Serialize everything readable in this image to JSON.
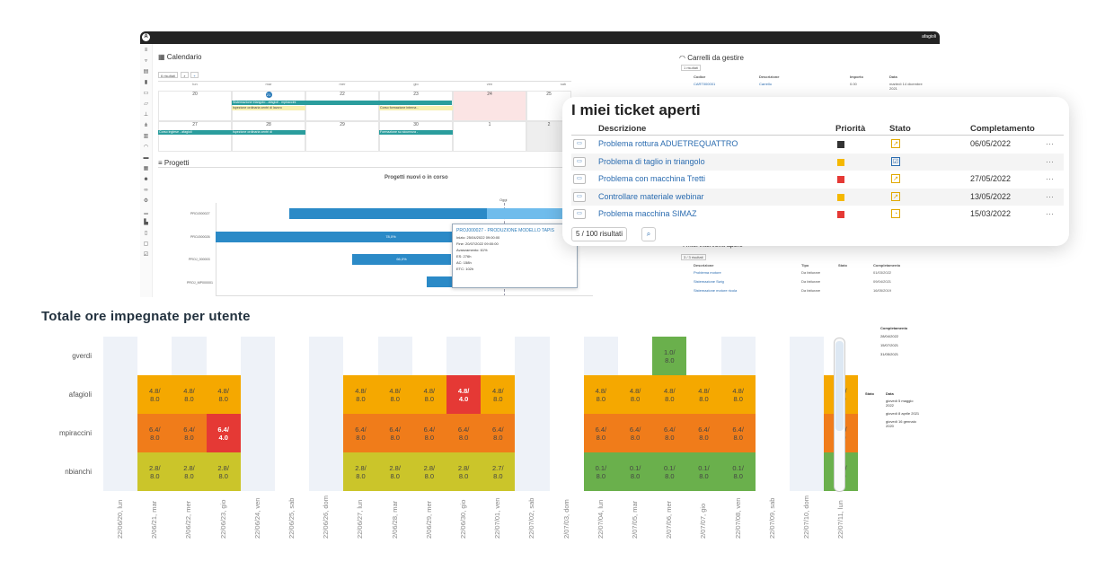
{
  "topbar": {
    "logo": "A",
    "user": "afagioli"
  },
  "calendar": {
    "title": "Calendario",
    "results": "6 risultati",
    "days": [
      "lun",
      "mar",
      "mer",
      "gio",
      "ven",
      "sab",
      "dom"
    ],
    "week1": [
      "20",
      "21",
      "22",
      "23",
      "24",
      "25",
      "26"
    ],
    "week2": [
      "27",
      "28",
      "29",
      "30",
      "1",
      "2",
      "3"
    ],
    "events": [
      "Sistemazione triangolo - afagioli - mpiraccini",
      "Ispezione ordinaria centri di lavoro",
      "Corso formazione interna -",
      "Corso inglese - afagioli",
      "Ispezione ordinaria centri di",
      "Formazione su sicurezza -"
    ]
  },
  "projects": {
    "title": "Progetti",
    "chart_title": "Progetti nuovi o in corso",
    "today": "Oggi",
    "rows": [
      "PROJ000027",
      "PROJ000026",
      "PROJ_000003",
      "PROJ_MP000001"
    ],
    "bar_label_1": "78,0%",
    "bar_label_2": "66,0%",
    "tooltip": {
      "title": "PROJ000027 - PRODUZIONE MODELLO TAPIS",
      "inizio": "Inizio: 25/04/2022 09:00:00",
      "fine": "Fine: 20/07/2022 09:00:00",
      "avanzamento": "Avanzamento: 61%",
      "es": "ES: 276h",
      "ac": "AC: 158h",
      "etc": "ETC: 102h"
    }
  },
  "carrelli": {
    "title": "Carrelli da gestire",
    "results": "1 risultati",
    "headers": [
      "Codice",
      "Descrizione",
      "Importo",
      "Data"
    ],
    "row": [
      "CART000001",
      "Carrello",
      "0.00",
      "martedì 14 dicembre 2021"
    ]
  },
  "tickets": {
    "title": "I miei ticket aperti",
    "headers": [
      "Descrizione",
      "Priorità",
      "Stato",
      "Completamento"
    ],
    "rows": [
      {
        "desc": "Problema rottura ADUETREQUATTRO",
        "prio": "#333333",
        "stato": "↗",
        "date": "06/05/2022"
      },
      {
        "desc": "Problema di taglio in triangolo",
        "prio": "#f5b800",
        "stato": "☑",
        "date": ""
      },
      {
        "desc": "Problema con macchina Tretti",
        "prio": "#e53935",
        "stato": "↗",
        "date": "27/05/2022"
      },
      {
        "desc": "Controllare materiale webinar",
        "prio": "#f5b800",
        "stato": "↗",
        "date": "13/05/2022"
      },
      {
        "desc": "Problema macchina SIMAZ",
        "prio": "#e53935",
        "stato": "◔",
        "date": "15/03/2022"
      }
    ],
    "pagination": "5 / 100 risultati",
    "more": "···"
  },
  "interventi": {
    "title": "I miei interventi aperti",
    "results": "3 / 3 risultati",
    "headers": [
      "Descrizione",
      "Tipo",
      "Stato",
      "Completamento"
    ],
    "rows": [
      [
        "Problema motore",
        "Da fatturare",
        "01/03/2022"
      ],
      [
        "Sistemazione Swig",
        "Da fatturare",
        "09/04/2021"
      ],
      [
        "Sistemazione motore ricola",
        "Da fatturare",
        "16/05/2019"
      ]
    ]
  },
  "misc": {
    "completamento": "Completamento",
    "dates_a": [
      "28/04/2022",
      "15/07/2021",
      "31/05/2021"
    ],
    "stato": "Stato",
    "data": "Data",
    "dates_b": [
      "giovedì 5 maggio 2022",
      "giovedì 8 aprile 2021",
      "giovedì 16 gennaio 2020"
    ]
  },
  "heatmap": {
    "title": "Totale ore impegnate per utente",
    "users": [
      "gverdi",
      "afagioli",
      "mpiraccini",
      "nbianchi"
    ],
    "dates": [
      "22/06/20, lun",
      "2/06/21, mar",
      "2/06/22, mer",
      "22/06/23, gio",
      "22/06/24, ven",
      "22/06/25, sab",
      "22/06/26, dom",
      "22/06/27, lun",
      "2/06/28, mar",
      "2/06/29, mer",
      "22/06/30, gio",
      "22/07/01, ven",
      "22/07/02, sab",
      "2/07/03, dom",
      "22/07/04, lun",
      "2/07/05, mar",
      "2/07/06, mer",
      "2/07/07, gio",
      "22/07/08, ven",
      "22/07/09, sab",
      "22/07/10, dom",
      "22/07/11, lun"
    ],
    "cells": {
      "gverdi": [
        "",
        "",
        "",
        "",
        "",
        "",
        "",
        "",
        "",
        "",
        "",
        "",
        "",
        "",
        "",
        "",
        "1.0/\n8.0",
        "",
        "",
        "",
        "",
        ""
      ],
      "afagioli": [
        "",
        "4.8/\n8.0",
        "4.8/\n8.0",
        "4.8/\n8.0",
        "",
        "",
        "",
        "4.8/\n8.0",
        "4.8/\n8.0",
        "4.8/\n8.0",
        "4.8/\n4.0",
        "4.8/\n8.0",
        "",
        "",
        "4.8/\n8.0",
        "4.8/\n8.0",
        "4.8/\n8.0",
        "4.8/\n8.0",
        "4.8/\n8.0",
        "",
        "",
        "4.8/\n8.0"
      ],
      "mpiraccini": [
        "",
        "6.4/\n8.0",
        "6.4/\n8.0",
        "6.4/\n4.0",
        "",
        "",
        "",
        "6.4/\n8.0",
        "6.4/\n8.0",
        "6.4/\n8.0",
        "6.4/\n8.0",
        "6.4/\n8.0",
        "",
        "",
        "6.4/\n8.0",
        "6.4/\n8.0",
        "6.4/\n8.0",
        "6.4/\n8.0",
        "6.4/\n8.0",
        "",
        "",
        "5.7/\n8.0"
      ],
      "nbianchi": [
        "",
        "2.8/\n8.0",
        "2.8/\n8.0",
        "2.8/\n8.0",
        "",
        "",
        "",
        "2.8/\n8.0",
        "2.8/\n8.0",
        "2.8/\n8.0",
        "2.8/\n8.0",
        "2.7/\n8.0",
        "",
        "",
        "0.1/\n8.0",
        "0.1/\n8.0",
        "0.1/\n8.0",
        "0.1/\n8.0",
        "0.1/\n8.0",
        "",
        "",
        "0.1/\n8.0"
      ]
    },
    "colors": {
      "gverdi": "#6ab04c",
      "afagioli": "#f5a800",
      "afagioli_hot": "#e53935",
      "mpiraccini": "#f07c1a",
      "mpiraccini_hot": "#e53935",
      "nbianchi": "#cbc52a",
      "nbianchi_low": "#6ab04c"
    }
  }
}
